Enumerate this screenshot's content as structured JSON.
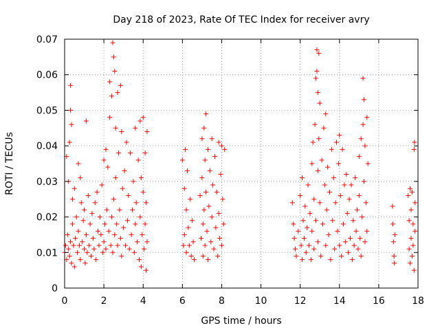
{
  "chart_data": {
    "type": "scatter",
    "title": "Day 218 of 2023, Rate Of TEC Index for receiver avry",
    "xlabel": "GPS time / hours",
    "ylabel": "ROTI / TECUs",
    "xlim": [
      0,
      18
    ],
    "ylim": [
      0,
      0.07
    ],
    "xticks": [
      0,
      2,
      4,
      6,
      8,
      10,
      12,
      14,
      16,
      18
    ],
    "xtick_labels": [
      "0",
      "2",
      "4",
      "6",
      "8",
      "10",
      "12",
      "14",
      "16",
      "18"
    ],
    "yticks": [
      0,
      0.01,
      0.02,
      0.03,
      0.04,
      0.05,
      0.06,
      0.07
    ],
    "ytick_labels": [
      "0",
      "0.01",
      "0.02",
      "0.03",
      "0.04",
      "0.05",
      "0.06",
      "0.07"
    ],
    "grid": true,
    "marker": "+",
    "color": "#ff0000",
    "series": [
      {
        "name": "ROTI",
        "points": [
          [
            0.0,
            0.01
          ],
          [
            0.05,
            0.012
          ],
          [
            0.1,
            0.008
          ],
          [
            0.1,
            0.037
          ],
          [
            0.15,
            0.015
          ],
          [
            0.2,
            0.03
          ],
          [
            0.2,
            0.011
          ],
          [
            0.25,
            0.041
          ],
          [
            0.25,
            0.009
          ],
          [
            0.3,
            0.057
          ],
          [
            0.3,
            0.05
          ],
          [
            0.3,
            0.013
          ],
          [
            0.35,
            0.046
          ],
          [
            0.35,
            0.007
          ],
          [
            0.4,
            0.025
          ],
          [
            0.4,
            0.018
          ],
          [
            0.45,
            0.012
          ],
          [
            0.5,
            0.028
          ],
          [
            0.5,
            0.006
          ],
          [
            0.55,
            0.014
          ],
          [
            0.6,
            0.02
          ],
          [
            0.65,
            0.01
          ],
          [
            0.7,
            0.035
          ],
          [
            0.7,
            0.016
          ],
          [
            0.75,
            0.012
          ],
          [
            0.8,
            0.031
          ],
          [
            0.8,
            0.008
          ],
          [
            0.85,
            0.024
          ],
          [
            0.9,
            0.013
          ],
          [
            0.95,
            0.019
          ],
          [
            1.0,
            0.011
          ],
          [
            1.0,
            0.022
          ],
          [
            1.05,
            0.007
          ],
          [
            1.1,
            0.047
          ],
          [
            1.1,
            0.015
          ],
          [
            1.15,
            0.01
          ],
          [
            1.2,
            0.026
          ],
          [
            1.25,
            0.012
          ],
          [
            1.3,
            0.018
          ],
          [
            1.35,
            0.009
          ],
          [
            1.4,
            0.021
          ],
          [
            1.45,
            0.014
          ],
          [
            1.5,
            0.011
          ],
          [
            1.55,
            0.024
          ],
          [
            1.6,
            0.008
          ],
          [
            1.65,
            0.027
          ],
          [
            1.7,
            0.016
          ],
          [
            1.75,
            0.012
          ],
          [
            1.8,
            0.02
          ],
          [
            1.85,
            0.015
          ],
          [
            1.9,
            0.029
          ],
          [
            1.95,
            0.01
          ],
          [
            2.0,
            0.036
          ],
          [
            2.0,
            0.013
          ],
          [
            2.05,
            0.018
          ],
          [
            2.1,
            0.039
          ],
          [
            2.1,
            0.011
          ],
          [
            2.15,
            0.022
          ],
          [
            2.2,
            0.034
          ],
          [
            2.25,
            0.016
          ],
          [
            2.3,
            0.058
          ],
          [
            2.3,
            0.048
          ],
          [
            2.35,
            0.012
          ],
          [
            2.4,
            0.054
          ],
          [
            2.4,
            0.02
          ],
          [
            2.45,
            0.069
          ],
          [
            2.45,
            0.01
          ],
          [
            2.5,
            0.065
          ],
          [
            2.5,
            0.025
          ],
          [
            2.55,
            0.061
          ],
          [
            2.55,
            0.015
          ],
          [
            2.6,
            0.045
          ],
          [
            2.6,
            0.031
          ],
          [
            2.65,
            0.018
          ],
          [
            2.7,
            0.055
          ],
          [
            2.7,
            0.012
          ],
          [
            2.75,
            0.038
          ],
          [
            2.8,
            0.022
          ],
          [
            2.85,
            0.057
          ],
          [
            2.85,
            0.014
          ],
          [
            2.9,
            0.044
          ],
          [
            2.9,
            0.009
          ],
          [
            2.95,
            0.028
          ],
          [
            3.0,
            0.017
          ],
          [
            3.05,
            0.033
          ],
          [
            3.1,
            0.012
          ],
          [
            3.15,
            0.041
          ],
          [
            3.2,
            0.019
          ],
          [
            3.25,
            0.026
          ],
          [
            3.3,
            0.011
          ],
          [
            3.35,
            0.038
          ],
          [
            3.4,
            0.015
          ],
          [
            3.45,
            0.022
          ],
          [
            3.5,
            0.03
          ],
          [
            3.55,
            0.01
          ],
          [
            3.6,
            0.045
          ],
          [
            3.6,
            0.018
          ],
          [
            3.65,
            0.024
          ],
          [
            3.7,
            0.013
          ],
          [
            3.75,
            0.036
          ],
          [
            3.8,
            0.008
          ],
          [
            3.85,
            0.047
          ],
          [
            3.85,
            0.02
          ],
          [
            3.9,
            0.031
          ],
          [
            3.9,
            0.006
          ],
          [
            3.95,
            0.015
          ],
          [
            4.0,
            0.048
          ],
          [
            4.0,
            0.027
          ],
          [
            4.05,
            0.011
          ],
          [
            4.1,
            0.018
          ],
          [
            4.1,
            0.038
          ],
          [
            4.15,
            0.024
          ],
          [
            4.15,
            0.005
          ],
          [
            4.2,
            0.044
          ],
          [
            4.2,
            0.013
          ],
          [
            6.0,
            0.036
          ],
          [
            6.05,
            0.012
          ],
          [
            6.1,
            0.028
          ],
          [
            6.1,
            0.015
          ],
          [
            6.15,
            0.039
          ],
          [
            6.2,
            0.01
          ],
          [
            6.2,
            0.022
          ],
          [
            6.25,
            0.033
          ],
          [
            6.3,
            0.017
          ],
          [
            6.35,
            0.012
          ],
          [
            6.4,
            0.025
          ],
          [
            6.45,
            0.009
          ],
          [
            6.5,
            0.019
          ],
          [
            6.55,
            0.013
          ],
          [
            6.6,
            0.008
          ],
          [
            6.9,
            0.026
          ],
          [
            6.95,
            0.014
          ],
          [
            7.0,
            0.042
          ],
          [
            7.0,
            0.031
          ],
          [
            7.05,
            0.018
          ],
          [
            7.05,
            0.009
          ],
          [
            7.1,
            0.045
          ],
          [
            7.1,
            0.022
          ],
          [
            7.15,
            0.036
          ],
          [
            7.15,
            0.012
          ],
          [
            7.2,
            0.049
          ],
          [
            7.2,
            0.027
          ],
          [
            7.25,
            0.016
          ],
          [
            7.3,
            0.039
          ],
          [
            7.3,
            0.008
          ],
          [
            7.35,
            0.023
          ],
          [
            7.4,
            0.033
          ],
          [
            7.45,
            0.013
          ],
          [
            7.5,
            0.042
          ],
          [
            7.5,
            0.02
          ],
          [
            7.55,
            0.029
          ],
          [
            7.6,
            0.011
          ],
          [
            7.65,
            0.037
          ],
          [
            7.7,
            0.017
          ],
          [
            7.75,
            0.027
          ],
          [
            7.8,
            0.009
          ],
          [
            7.85,
            0.041
          ],
          [
            7.85,
            0.021
          ],
          [
            7.9,
            0.014
          ],
          [
            7.95,
            0.032
          ],
          [
            8.0,
            0.04
          ],
          [
            8.0,
            0.012
          ],
          [
            8.05,
            0.025
          ],
          [
            8.1,
            0.018
          ],
          [
            8.15,
            0.039
          ],
          [
            11.6,
            0.024
          ],
          [
            11.65,
            0.018
          ],
          [
            11.7,
            0.014
          ],
          [
            11.75,
            0.011
          ],
          [
            11.8,
            0.009
          ],
          [
            11.9,
            0.016
          ],
          [
            12.0,
            0.026
          ],
          [
            12.05,
            0.012
          ],
          [
            12.1,
            0.031
          ],
          [
            12.1,
            0.008
          ],
          [
            12.15,
            0.019
          ],
          [
            12.2,
            0.014
          ],
          [
            12.25,
            0.023
          ],
          [
            12.3,
            0.01
          ],
          [
            12.35,
            0.017
          ],
          [
            12.4,
            0.029
          ],
          [
            12.45,
            0.012
          ],
          [
            12.5,
            0.021
          ],
          [
            12.55,
            0.008
          ],
          [
            12.6,
            0.035
          ],
          [
            12.6,
            0.016
          ],
          [
            12.65,
            0.041
          ],
          [
            12.7,
            0.025
          ],
          [
            12.7,
            0.011
          ],
          [
            12.75,
            0.046
          ],
          [
            12.8,
            0.059
          ],
          [
            12.8,
            0.019
          ],
          [
            12.85,
            0.067
          ],
          [
            12.85,
            0.061
          ],
          [
            12.9,
            0.055
          ],
          [
            12.9,
            0.033
          ],
          [
            12.9,
            0.013
          ],
          [
            12.95,
            0.066
          ],
          [
            12.95,
            0.042
          ],
          [
            13.0,
            0.052
          ],
          [
            13.0,
            0.024
          ],
          [
            13.05,
            0.009
          ],
          [
            13.1,
            0.036
          ],
          [
            13.15,
            0.018
          ],
          [
            13.2,
            0.045
          ],
          [
            13.25,
            0.029
          ],
          [
            13.3,
            0.049
          ],
          [
            13.3,
            0.012
          ],
          [
            13.35,
            0.022
          ],
          [
            13.4,
            0.034
          ],
          [
            13.45,
            0.015
          ],
          [
            13.5,
            0.027
          ],
          [
            13.55,
            0.008
          ],
          [
            13.6,
            0.039
          ],
          [
            13.65,
            0.019
          ],
          [
            13.7,
            0.031
          ],
          [
            13.75,
            0.011
          ],
          [
            13.8,
            0.024
          ],
          [
            13.85,
            0.041
          ],
          [
            13.9,
            0.016
          ],
          [
            13.95,
            0.035
          ],
          [
            14.0,
            0.012
          ],
          [
            14.0,
            0.043
          ],
          [
            14.05,
            0.026
          ],
          [
            14.1,
            0.009
          ],
          [
            14.15,
            0.039
          ],
          [
            14.2,
            0.018
          ],
          [
            14.25,
            0.029
          ],
          [
            14.3,
            0.013
          ],
          [
            14.35,
            0.032
          ],
          [
            14.4,
            0.021
          ],
          [
            14.45,
            0.01
          ],
          [
            14.5,
            0.025
          ],
          [
            14.55,
            0.014
          ],
          [
            14.6,
            0.029
          ],
          [
            14.65,
            0.008
          ],
          [
            14.7,
            0.019
          ],
          [
            14.75,
            0.012
          ],
          [
            14.8,
            0.031
          ],
          [
            14.85,
            0.016
          ],
          [
            14.9,
            0.022
          ],
          [
            14.95,
            0.011
          ],
          [
            15.0,
            0.026
          ],
          [
            15.0,
            0.037
          ],
          [
            15.05,
            0.014
          ],
          [
            15.1,
            0.009
          ],
          [
            15.1,
            0.042
          ],
          [
            15.15,
            0.02
          ],
          [
            15.2,
            0.059
          ],
          [
            15.2,
            0.046
          ],
          [
            15.25,
            0.053
          ],
          [
            15.25,
            0.03
          ],
          [
            15.3,
            0.013
          ],
          [
            15.3,
            0.04
          ],
          [
            15.35,
            0.024
          ],
          [
            15.4,
            0.048
          ],
          [
            15.4,
            0.016
          ],
          [
            15.45,
            0.035
          ],
          [
            16.7,
            0.023
          ],
          [
            16.72,
            0.018
          ],
          [
            16.75,
            0.013
          ],
          [
            16.78,
            0.009
          ],
          [
            16.8,
            0.007
          ],
          [
            16.82,
            0.015
          ],
          [
            17.5,
            0.026
          ],
          [
            17.55,
            0.019
          ],
          [
            17.55,
            0.011
          ],
          [
            17.6,
            0.028
          ],
          [
            17.6,
            0.007
          ],
          [
            17.65,
            0.022
          ],
          [
            17.65,
            0.014
          ],
          [
            17.7,
            0.027
          ],
          [
            17.7,
            0.009
          ],
          [
            17.75,
            0.018
          ],
          [
            17.75,
            0.012
          ],
          [
            17.8,
            0.039
          ],
          [
            17.8,
            0.005
          ],
          [
            17.82,
            0.041
          ],
          [
            17.85,
            0.024
          ],
          [
            17.85,
            0.016
          ]
        ]
      }
    ]
  }
}
